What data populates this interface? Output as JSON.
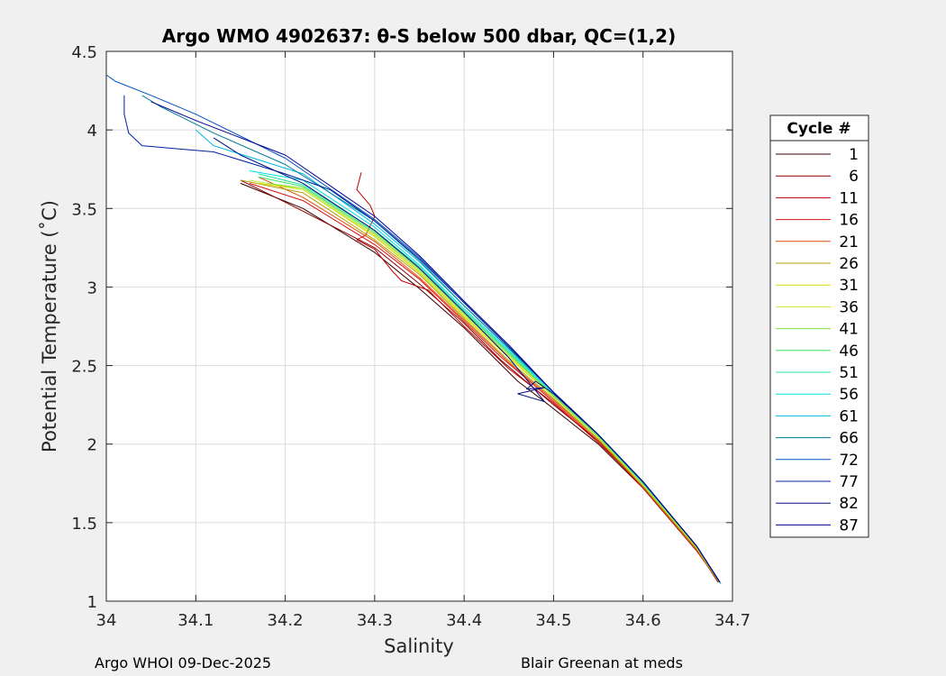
{
  "chart_data": {
    "type": "line",
    "title": "Argo WMO 4902637: θ-S below 500 dbar,  QC=(1,2)",
    "xlabel": "Salinity",
    "ylabel": "Potential Temperature (˚C)",
    "xlim": [
      34,
      34.7
    ],
    "ylim": [
      1,
      4.5
    ],
    "xticks": [
      "34",
      "34.1",
      "34.2",
      "34.3",
      "34.4",
      "34.5",
      "34.6",
      "34.7"
    ],
    "yticks": [
      "1",
      "1.5",
      "2",
      "2.5",
      "3",
      "3.5",
      "4",
      "4.5"
    ],
    "grid": true,
    "legend": {
      "title": "Cycle #",
      "placement": "right-outside",
      "entries": [
        "1",
        "6",
        "11",
        "16",
        "21",
        "26",
        "31",
        "36",
        "41",
        "46",
        "51",
        "56",
        "61",
        "66",
        "72",
        "77",
        "82",
        "87"
      ],
      "colors": [
        "#3a0000",
        "#8a0000",
        "#c00000",
        "#d81010",
        "#e84a08",
        "#b0a000",
        "#d8d800",
        "#c8e830",
        "#80e040",
        "#40e060",
        "#20e0a0",
        "#00e0e0",
        "#00b8e0",
        "#007a9a",
        "#0050c0",
        "#0020a0",
        "#001080",
        "#000090"
      ]
    },
    "series": [
      {
        "values": [
          [
            34.683,
            1.14
          ],
          [
            34.66,
            1.32
          ],
          [
            34.6,
            1.72
          ],
          [
            34.55,
            2.0
          ],
          [
            34.49,
            2.27
          ],
          [
            34.46,
            2.4
          ],
          [
            34.4,
            2.74
          ],
          [
            34.35,
            2.99
          ],
          [
            34.3,
            3.22
          ],
          [
            34.22,
            3.5
          ],
          [
            34.15,
            3.66
          ]
        ]
      },
      {
        "values": [
          [
            34.685,
            1.13
          ],
          [
            34.66,
            1.34
          ],
          [
            34.6,
            1.73
          ],
          [
            34.55,
            2.02
          ],
          [
            34.5,
            2.25
          ],
          [
            34.44,
            2.54
          ],
          [
            34.4,
            2.77
          ],
          [
            34.35,
            3.02
          ],
          [
            34.3,
            3.25
          ],
          [
            34.2,
            3.54
          ],
          [
            34.15,
            3.68
          ]
        ]
      },
      {
        "values": [
          [
            34.684,
            1.12
          ],
          [
            34.66,
            1.33
          ],
          [
            34.6,
            1.73
          ],
          [
            34.55,
            2.01
          ],
          [
            34.5,
            2.26
          ],
          [
            34.45,
            2.48
          ],
          [
            34.4,
            2.75
          ],
          [
            34.36,
            2.98
          ],
          [
            34.33,
            3.04
          ],
          [
            34.32,
            3.1
          ],
          [
            34.3,
            3.24
          ],
          [
            34.28,
            3.3
          ],
          [
            34.29,
            3.33
          ],
          [
            34.3,
            3.45
          ],
          [
            34.295,
            3.52
          ],
          [
            34.28,
            3.62
          ],
          [
            34.285,
            3.73
          ]
        ]
      },
      {
        "values": [
          [
            34.683,
            1.14
          ],
          [
            34.66,
            1.32
          ],
          [
            34.6,
            1.72
          ],
          [
            34.55,
            2.02
          ],
          [
            34.5,
            2.27
          ],
          [
            34.44,
            2.56
          ],
          [
            34.4,
            2.78
          ],
          [
            34.35,
            3.05
          ],
          [
            34.3,
            3.27
          ],
          [
            34.22,
            3.55
          ],
          [
            34.16,
            3.66
          ]
        ]
      },
      {
        "values": [
          [
            34.684,
            1.13
          ],
          [
            34.66,
            1.34
          ],
          [
            34.6,
            1.74
          ],
          [
            34.55,
            2.03
          ],
          [
            34.5,
            2.28
          ],
          [
            34.45,
            2.52
          ],
          [
            34.4,
            2.79
          ],
          [
            34.35,
            3.06
          ],
          [
            34.3,
            3.29
          ],
          [
            34.22,
            3.57
          ],
          [
            34.17,
            3.7
          ]
        ]
      },
      {
        "values": [
          [
            34.685,
            1.12
          ],
          [
            34.66,
            1.33
          ],
          [
            34.6,
            1.73
          ],
          [
            34.55,
            2.03
          ],
          [
            34.5,
            2.29
          ],
          [
            34.45,
            2.53
          ],
          [
            34.4,
            2.8
          ],
          [
            34.35,
            3.08
          ],
          [
            34.3,
            3.3
          ],
          [
            34.22,
            3.6
          ],
          [
            34.15,
            3.68
          ]
        ]
      },
      {
        "values": [
          [
            34.685,
            1.13
          ],
          [
            34.66,
            1.34
          ],
          [
            34.6,
            1.74
          ],
          [
            34.55,
            2.04
          ],
          [
            34.5,
            2.3
          ],
          [
            34.45,
            2.55
          ],
          [
            34.4,
            2.81
          ],
          [
            34.35,
            3.09
          ],
          [
            34.3,
            3.32
          ],
          [
            34.22,
            3.62
          ],
          [
            34.17,
            3.66
          ]
        ]
      },
      {
        "values": [
          [
            34.686,
            1.12
          ],
          [
            34.66,
            1.34
          ],
          [
            34.6,
            1.74
          ],
          [
            34.55,
            2.04
          ],
          [
            34.5,
            2.3
          ],
          [
            34.45,
            2.56
          ],
          [
            34.4,
            2.82
          ],
          [
            34.35,
            3.1
          ],
          [
            34.3,
            3.33
          ],
          [
            34.22,
            3.62
          ],
          [
            34.16,
            3.68
          ]
        ]
      },
      {
        "values": [
          [
            34.686,
            1.12
          ],
          [
            34.66,
            1.35
          ],
          [
            34.6,
            1.75
          ],
          [
            34.55,
            2.05
          ],
          [
            34.5,
            2.31
          ],
          [
            34.45,
            2.57
          ],
          [
            34.4,
            2.83
          ],
          [
            34.35,
            3.11
          ],
          [
            34.3,
            3.34
          ],
          [
            34.22,
            3.63
          ],
          [
            34.18,
            3.66
          ]
        ]
      },
      {
        "values": [
          [
            34.686,
            1.12
          ],
          [
            34.66,
            1.35
          ],
          [
            34.6,
            1.75
          ],
          [
            34.55,
            2.05
          ],
          [
            34.5,
            2.31
          ],
          [
            34.45,
            2.58
          ],
          [
            34.4,
            2.84
          ],
          [
            34.35,
            3.12
          ],
          [
            34.3,
            3.35
          ],
          [
            34.22,
            3.64
          ],
          [
            34.17,
            3.7
          ]
        ]
      },
      {
        "values": [
          [
            34.687,
            1.11
          ],
          [
            34.66,
            1.35
          ],
          [
            34.6,
            1.75
          ],
          [
            34.55,
            2.06
          ],
          [
            34.5,
            2.32
          ],
          [
            34.45,
            2.59
          ],
          [
            34.4,
            2.85
          ],
          [
            34.35,
            3.13
          ],
          [
            34.3,
            3.36
          ],
          [
            34.22,
            3.65
          ],
          [
            34.17,
            3.72
          ]
        ]
      },
      {
        "values": [
          [
            34.687,
            1.11
          ],
          [
            34.66,
            1.35
          ],
          [
            34.6,
            1.76
          ],
          [
            34.55,
            2.06
          ],
          [
            34.5,
            2.32
          ],
          [
            34.45,
            2.6
          ],
          [
            34.4,
            2.86
          ],
          [
            34.35,
            3.14
          ],
          [
            34.3,
            3.38
          ],
          [
            34.22,
            3.68
          ],
          [
            34.16,
            3.74
          ]
        ]
      },
      {
        "values": [
          [
            34.686,
            1.12
          ],
          [
            34.66,
            1.35
          ],
          [
            34.6,
            1.76
          ],
          [
            34.55,
            2.06
          ],
          [
            34.5,
            2.33
          ],
          [
            34.45,
            2.61
          ],
          [
            34.4,
            2.88
          ],
          [
            34.35,
            3.16
          ],
          [
            34.3,
            3.4
          ],
          [
            34.22,
            3.72
          ],
          [
            34.12,
            3.9
          ],
          [
            34.1,
            4.0
          ]
        ]
      },
      {
        "values": [
          [
            34.686,
            1.12
          ],
          [
            34.66,
            1.35
          ],
          [
            34.6,
            1.76
          ],
          [
            34.55,
            2.06
          ],
          [
            34.5,
            2.33
          ],
          [
            34.45,
            2.61
          ],
          [
            34.4,
            2.88
          ],
          [
            34.35,
            3.17
          ],
          [
            34.3,
            3.42
          ],
          [
            34.2,
            3.78
          ],
          [
            34.12,
            3.98
          ],
          [
            34.06,
            4.15
          ],
          [
            34.04,
            4.22
          ]
        ]
      },
      {
        "values": [
          [
            34.686,
            1.12
          ],
          [
            34.66,
            1.35
          ],
          [
            34.6,
            1.76
          ],
          [
            34.55,
            2.06
          ],
          [
            34.5,
            2.33
          ],
          [
            34.45,
            2.62
          ],
          [
            34.4,
            2.9
          ],
          [
            34.35,
            3.19
          ],
          [
            34.3,
            3.43
          ],
          [
            34.2,
            3.82
          ],
          [
            34.1,
            4.1
          ],
          [
            34.05,
            4.22
          ],
          [
            34.01,
            4.31
          ],
          [
            34.0,
            4.35
          ]
        ]
      },
      {
        "values": [
          [
            34.686,
            1.12
          ],
          [
            34.66,
            1.35
          ],
          [
            34.6,
            1.76
          ],
          [
            34.55,
            2.06
          ],
          [
            34.5,
            2.33
          ],
          [
            34.45,
            2.62
          ],
          [
            34.4,
            2.9
          ],
          [
            34.35,
            3.18
          ],
          [
            34.3,
            3.42
          ],
          [
            34.25,
            3.62
          ],
          [
            34.2,
            3.72
          ],
          [
            34.12,
            3.86
          ],
          [
            34.08,
            3.88
          ],
          [
            34.04,
            3.9
          ],
          [
            34.025,
            3.98
          ],
          [
            34.02,
            4.1
          ],
          [
            34.02,
            4.22
          ]
        ]
      },
      {
        "values": [
          [
            34.686,
            1.12
          ],
          [
            34.66,
            1.35
          ],
          [
            34.6,
            1.76
          ],
          [
            34.55,
            2.06
          ],
          [
            34.5,
            2.32
          ],
          [
            34.48,
            2.4
          ],
          [
            34.47,
            2.35
          ],
          [
            34.49,
            2.36
          ],
          [
            34.46,
            2.32
          ],
          [
            34.49,
            2.27
          ],
          [
            34.45,
            2.55
          ],
          [
            34.4,
            2.84
          ],
          [
            34.35,
            3.12
          ],
          [
            34.3,
            3.36
          ],
          [
            34.22,
            3.66
          ],
          [
            34.15,
            3.84
          ],
          [
            34.12,
            3.95
          ]
        ]
      },
      {
        "values": [
          [
            34.686,
            1.12
          ],
          [
            34.66,
            1.35
          ],
          [
            34.6,
            1.76
          ],
          [
            34.55,
            2.06
          ],
          [
            34.5,
            2.33
          ],
          [
            34.45,
            2.63
          ],
          [
            34.4,
            2.91
          ],
          [
            34.35,
            3.2
          ],
          [
            34.3,
            3.45
          ],
          [
            34.2,
            3.84
          ],
          [
            34.1,
            4.06
          ],
          [
            34.05,
            4.18
          ]
        ]
      }
    ]
  },
  "footer": {
    "left": "Argo WHOI 09-Dec-2025",
    "right": "Blair Greenan at meds"
  }
}
